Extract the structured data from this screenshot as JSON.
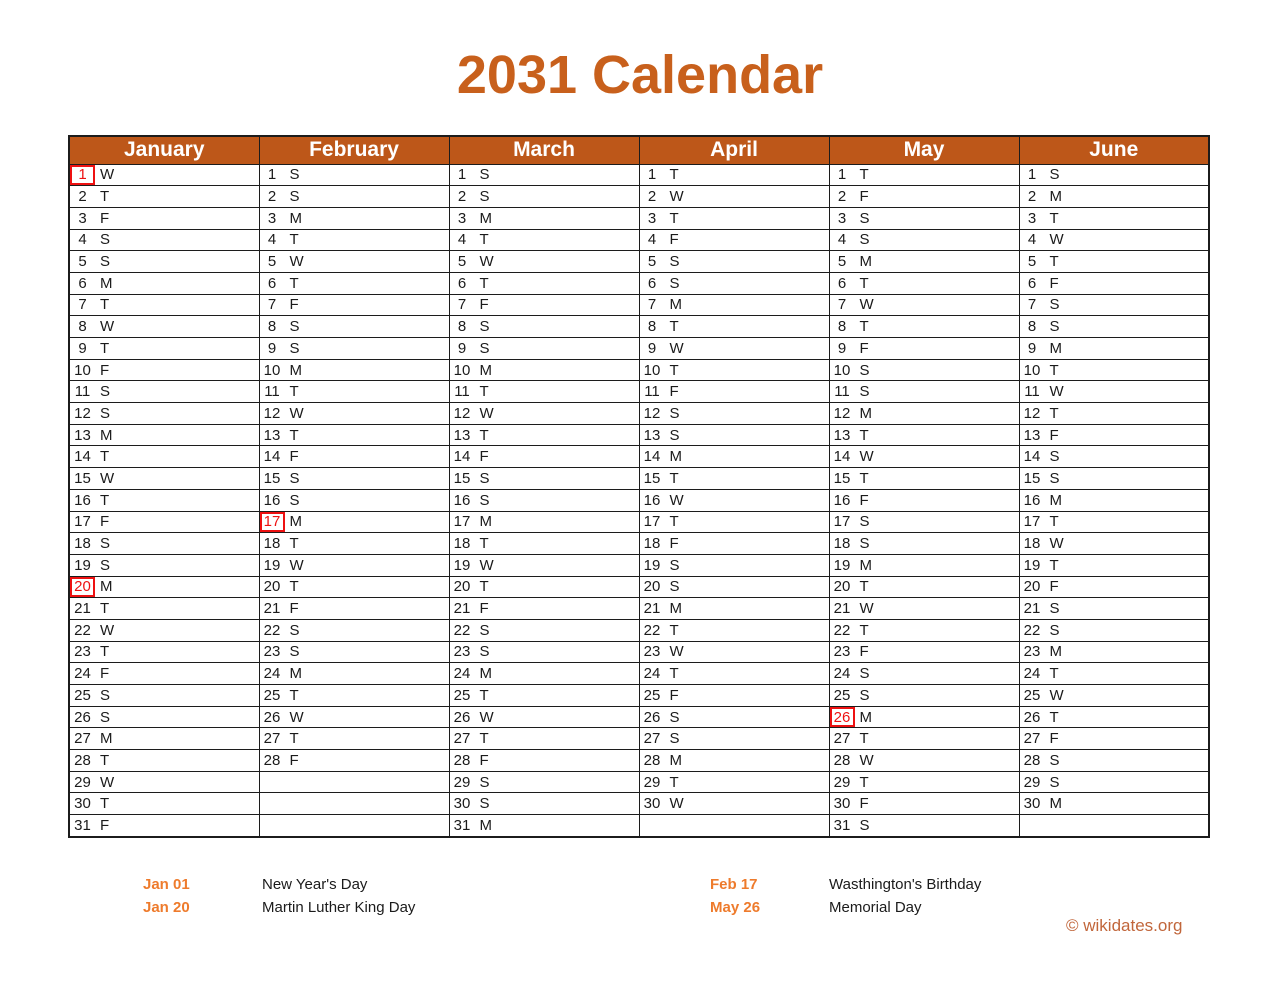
{
  "page": {
    "title": "2031 Calendar"
  },
  "colors": {
    "title": "#C8601C",
    "header_bg": "#BD5719",
    "header_text": "#FFFFFF",
    "saturday_bg": "#FCE49C",
    "sunday_bg": "#FFC10D",
    "holiday_red": "#EE1111",
    "grid_border": "#1C1C1C",
    "legend_date": "#EE7B2C",
    "credit": "#C1663B"
  },
  "calendar": {
    "year": "2031",
    "row_count": 31,
    "day_type_legend": "third element: '' weekday, 'sat' Saturday, 'sun' Sunday, 'holiday' red-boxed holiday",
    "months": [
      {
        "name": "January",
        "days": [
          [
            1,
            "W",
            "holiday"
          ],
          [
            2,
            "T",
            ""
          ],
          [
            3,
            "F",
            ""
          ],
          [
            4,
            "S",
            "sat"
          ],
          [
            5,
            "S",
            "sun"
          ],
          [
            6,
            "M",
            ""
          ],
          [
            7,
            "T",
            ""
          ],
          [
            8,
            "W",
            ""
          ],
          [
            9,
            "T",
            ""
          ],
          [
            10,
            "F",
            ""
          ],
          [
            11,
            "S",
            "sat"
          ],
          [
            12,
            "S",
            "sun"
          ],
          [
            13,
            "M",
            ""
          ],
          [
            14,
            "T",
            ""
          ],
          [
            15,
            "W",
            ""
          ],
          [
            16,
            "T",
            ""
          ],
          [
            17,
            "F",
            ""
          ],
          [
            18,
            "S",
            "sat"
          ],
          [
            19,
            "S",
            "sun"
          ],
          [
            20,
            "M",
            "holiday"
          ],
          [
            21,
            "T",
            ""
          ],
          [
            22,
            "W",
            ""
          ],
          [
            23,
            "T",
            ""
          ],
          [
            24,
            "F",
            ""
          ],
          [
            25,
            "S",
            "sat"
          ],
          [
            26,
            "S",
            "sun"
          ],
          [
            27,
            "M",
            ""
          ],
          [
            28,
            "T",
            ""
          ],
          [
            29,
            "W",
            ""
          ],
          [
            30,
            "T",
            ""
          ],
          [
            31,
            "F",
            ""
          ]
        ]
      },
      {
        "name": "February",
        "days": [
          [
            1,
            "S",
            "sat"
          ],
          [
            2,
            "S",
            "sun"
          ],
          [
            3,
            "M",
            ""
          ],
          [
            4,
            "T",
            ""
          ],
          [
            5,
            "W",
            ""
          ],
          [
            6,
            "T",
            ""
          ],
          [
            7,
            "F",
            ""
          ],
          [
            8,
            "S",
            "sat"
          ],
          [
            9,
            "S",
            "sun"
          ],
          [
            10,
            "M",
            ""
          ],
          [
            11,
            "T",
            ""
          ],
          [
            12,
            "W",
            ""
          ],
          [
            13,
            "T",
            ""
          ],
          [
            14,
            "F",
            ""
          ],
          [
            15,
            "S",
            "sat"
          ],
          [
            16,
            "S",
            "sun"
          ],
          [
            17,
            "M",
            "holiday"
          ],
          [
            18,
            "T",
            ""
          ],
          [
            19,
            "W",
            ""
          ],
          [
            20,
            "T",
            ""
          ],
          [
            21,
            "F",
            ""
          ],
          [
            22,
            "S",
            "sat"
          ],
          [
            23,
            "S",
            "sun"
          ],
          [
            24,
            "M",
            ""
          ],
          [
            25,
            "T",
            ""
          ],
          [
            26,
            "W",
            ""
          ],
          [
            27,
            "T",
            ""
          ],
          [
            28,
            "F",
            ""
          ]
        ]
      },
      {
        "name": "March",
        "days": [
          [
            1,
            "S",
            "sat"
          ],
          [
            2,
            "S",
            "sun"
          ],
          [
            3,
            "M",
            ""
          ],
          [
            4,
            "T",
            ""
          ],
          [
            5,
            "W",
            ""
          ],
          [
            6,
            "T",
            ""
          ],
          [
            7,
            "F",
            ""
          ],
          [
            8,
            "S",
            "sat"
          ],
          [
            9,
            "S",
            "sun"
          ],
          [
            10,
            "M",
            ""
          ],
          [
            11,
            "T",
            ""
          ],
          [
            12,
            "W",
            ""
          ],
          [
            13,
            "T",
            ""
          ],
          [
            14,
            "F",
            ""
          ],
          [
            15,
            "S",
            "sat"
          ],
          [
            16,
            "S",
            "sun"
          ],
          [
            17,
            "M",
            ""
          ],
          [
            18,
            "T",
            ""
          ],
          [
            19,
            "W",
            ""
          ],
          [
            20,
            "T",
            ""
          ],
          [
            21,
            "F",
            ""
          ],
          [
            22,
            "S",
            "sat"
          ],
          [
            23,
            "S",
            "sun"
          ],
          [
            24,
            "M",
            ""
          ],
          [
            25,
            "T",
            ""
          ],
          [
            26,
            "W",
            ""
          ],
          [
            27,
            "T",
            ""
          ],
          [
            28,
            "F",
            ""
          ],
          [
            29,
            "S",
            "sat"
          ],
          [
            30,
            "S",
            "sun"
          ],
          [
            31,
            "M",
            ""
          ]
        ]
      },
      {
        "name": "April",
        "days": [
          [
            1,
            "T",
            ""
          ],
          [
            2,
            "W",
            ""
          ],
          [
            3,
            "T",
            ""
          ],
          [
            4,
            "F",
            ""
          ],
          [
            5,
            "S",
            "sat"
          ],
          [
            6,
            "S",
            "sun"
          ],
          [
            7,
            "M",
            ""
          ],
          [
            8,
            "T",
            ""
          ],
          [
            9,
            "W",
            ""
          ],
          [
            10,
            "T",
            ""
          ],
          [
            11,
            "F",
            ""
          ],
          [
            12,
            "S",
            "sat"
          ],
          [
            13,
            "S",
            "sun"
          ],
          [
            14,
            "M",
            ""
          ],
          [
            15,
            "T",
            ""
          ],
          [
            16,
            "W",
            ""
          ],
          [
            17,
            "T",
            ""
          ],
          [
            18,
            "F",
            ""
          ],
          [
            19,
            "S",
            "sat"
          ],
          [
            20,
            "S",
            "sun"
          ],
          [
            21,
            "M",
            ""
          ],
          [
            22,
            "T",
            ""
          ],
          [
            23,
            "W",
            ""
          ],
          [
            24,
            "T",
            ""
          ],
          [
            25,
            "F",
            ""
          ],
          [
            26,
            "S",
            "sat"
          ],
          [
            27,
            "S",
            "sun"
          ],
          [
            28,
            "M",
            ""
          ],
          [
            29,
            "T",
            ""
          ],
          [
            30,
            "W",
            ""
          ]
        ]
      },
      {
        "name": "May",
        "days": [
          [
            1,
            "T",
            ""
          ],
          [
            2,
            "F",
            ""
          ],
          [
            3,
            "S",
            "sat"
          ],
          [
            4,
            "S",
            "sun"
          ],
          [
            5,
            "M",
            ""
          ],
          [
            6,
            "T",
            ""
          ],
          [
            7,
            "W",
            ""
          ],
          [
            8,
            "T",
            ""
          ],
          [
            9,
            "F",
            ""
          ],
          [
            10,
            "S",
            "sat"
          ],
          [
            11,
            "S",
            "sun"
          ],
          [
            12,
            "M",
            ""
          ],
          [
            13,
            "T",
            ""
          ],
          [
            14,
            "W",
            ""
          ],
          [
            15,
            "T",
            ""
          ],
          [
            16,
            "F",
            ""
          ],
          [
            17,
            "S",
            "sat"
          ],
          [
            18,
            "S",
            "sun"
          ],
          [
            19,
            "M",
            ""
          ],
          [
            20,
            "T",
            ""
          ],
          [
            21,
            "W",
            ""
          ],
          [
            22,
            "T",
            ""
          ],
          [
            23,
            "F",
            ""
          ],
          [
            24,
            "S",
            "sat"
          ],
          [
            25,
            "S",
            "sun"
          ],
          [
            26,
            "M",
            "holiday"
          ],
          [
            27,
            "T",
            ""
          ],
          [
            28,
            "W",
            ""
          ],
          [
            29,
            "T",
            ""
          ],
          [
            30,
            "F",
            ""
          ],
          [
            31,
            "S",
            "sat"
          ]
        ]
      },
      {
        "name": "June",
        "days": [
          [
            1,
            "S",
            "sun"
          ],
          [
            2,
            "M",
            ""
          ],
          [
            3,
            "T",
            ""
          ],
          [
            4,
            "W",
            ""
          ],
          [
            5,
            "T",
            ""
          ],
          [
            6,
            "F",
            ""
          ],
          [
            7,
            "S",
            "sat"
          ],
          [
            8,
            "S",
            "sun"
          ],
          [
            9,
            "M",
            ""
          ],
          [
            10,
            "T",
            ""
          ],
          [
            11,
            "W",
            ""
          ],
          [
            12,
            "T",
            ""
          ],
          [
            13,
            "F",
            ""
          ],
          [
            14,
            "S",
            "sat"
          ],
          [
            15,
            "S",
            "sun"
          ],
          [
            16,
            "M",
            ""
          ],
          [
            17,
            "T",
            ""
          ],
          [
            18,
            "W",
            ""
          ],
          [
            19,
            "T",
            ""
          ],
          [
            20,
            "F",
            ""
          ],
          [
            21,
            "S",
            "sat"
          ],
          [
            22,
            "S",
            "sun"
          ],
          [
            23,
            "M",
            ""
          ],
          [
            24,
            "T",
            ""
          ],
          [
            25,
            "W",
            ""
          ],
          [
            26,
            "T",
            ""
          ],
          [
            27,
            "F",
            ""
          ],
          [
            28,
            "S",
            "sat"
          ],
          [
            29,
            "S",
            "sun"
          ],
          [
            30,
            "M",
            ""
          ]
        ]
      }
    ]
  },
  "legend": {
    "items": [
      {
        "date": "Jan 01",
        "name": "New Year's Day"
      },
      {
        "date": "Jan 20",
        "name": "Martin Luther King Day"
      },
      {
        "date": "Feb 17",
        "name": "Wasthington's Birthday"
      },
      {
        "date": "May 26",
        "name": "Memorial Day"
      }
    ]
  },
  "credit": {
    "text": "© wikidates.org"
  }
}
